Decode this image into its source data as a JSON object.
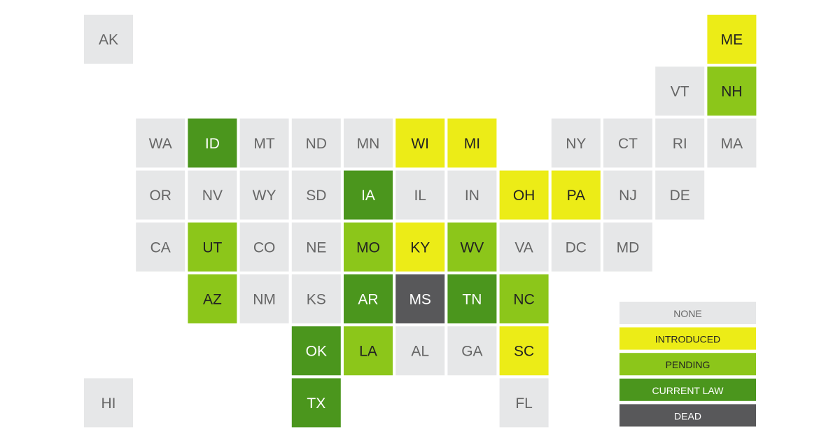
{
  "map": {
    "rows": [
      [
        {
          "label": "AK",
          "status": "NONE"
        },
        null,
        null,
        null,
        null,
        null,
        null,
        null,
        null,
        null,
        null,
        null,
        {
          "label": "ME",
          "status": "INTRODUCED"
        }
      ],
      [
        null,
        null,
        null,
        null,
        null,
        null,
        null,
        null,
        null,
        null,
        null,
        {
          "label": "VT",
          "status": "NONE"
        },
        {
          "label": "NH",
          "status": "PENDING"
        }
      ],
      [
        null,
        {
          "label": "WA",
          "status": "NONE"
        },
        {
          "label": "ID",
          "status": "CURRENT LAW"
        },
        {
          "label": "MT",
          "status": "NONE"
        },
        {
          "label": "ND",
          "status": "NONE"
        },
        {
          "label": "MN",
          "status": "NONE"
        },
        {
          "label": "WI",
          "status": "INTRODUCED"
        },
        {
          "label": "MI",
          "status": "INTRODUCED"
        },
        null,
        {
          "label": "NY",
          "status": "NONE"
        },
        {
          "label": "CT",
          "status": "NONE"
        },
        {
          "label": "RI",
          "status": "NONE"
        },
        {
          "label": "MA",
          "status": "NONE"
        }
      ],
      [
        null,
        {
          "label": "OR",
          "status": "NONE"
        },
        {
          "label": "NV",
          "status": "NONE"
        },
        {
          "label": "WY",
          "status": "NONE"
        },
        {
          "label": "SD",
          "status": "NONE"
        },
        {
          "label": "IA",
          "status": "CURRENT LAW"
        },
        {
          "label": "IL",
          "status": "NONE"
        },
        {
          "label": "IN",
          "status": "NONE"
        },
        {
          "label": "OH",
          "status": "INTRODUCED"
        },
        {
          "label": "PA",
          "status": "INTRODUCED"
        },
        {
          "label": "NJ",
          "status": "NONE"
        },
        {
          "label": "DE",
          "status": "NONE"
        },
        null
      ],
      [
        null,
        {
          "label": "CA",
          "status": "NONE"
        },
        {
          "label": "UT",
          "status": "PENDING"
        },
        {
          "label": "CO",
          "status": "NONE"
        },
        {
          "label": "NE",
          "status": "NONE"
        },
        {
          "label": "MO",
          "status": "PENDING"
        },
        {
          "label": "KY",
          "status": "INTRODUCED"
        },
        {
          "label": "WV",
          "status": "PENDING"
        },
        {
          "label": "VA",
          "status": "NONE"
        },
        {
          "label": "DC",
          "status": "NONE"
        },
        {
          "label": "MD",
          "status": "NONE"
        },
        null,
        null
      ],
      [
        null,
        null,
        {
          "label": "AZ",
          "status": "PENDING"
        },
        {
          "label": "NM",
          "status": "NONE"
        },
        {
          "label": "KS",
          "status": "NONE"
        },
        {
          "label": "AR",
          "status": "CURRENT LAW"
        },
        {
          "label": "MS",
          "status": "DEAD"
        },
        {
          "label": "TN",
          "status": "CURRENT LAW"
        },
        {
          "label": "NC",
          "status": "PENDING"
        },
        null,
        null,
        null,
        null
      ],
      [
        null,
        null,
        null,
        null,
        {
          "label": "OK",
          "status": "CURRENT LAW"
        },
        {
          "label": "LA",
          "status": "PENDING"
        },
        {
          "label": "AL",
          "status": "NONE"
        },
        {
          "label": "GA",
          "status": "NONE"
        },
        {
          "label": "SC",
          "status": "INTRODUCED"
        },
        null,
        null,
        null,
        null
      ],
      [
        {
          "label": "HI",
          "status": "NONE"
        },
        null,
        null,
        null,
        {
          "label": "TX",
          "status": "CURRENT LAW"
        },
        null,
        null,
        null,
        {
          "label": "FL",
          "status": "NONE"
        },
        null,
        null,
        null,
        null
      ]
    ],
    "legend": [
      {
        "label": "NONE",
        "color": "#e6e7e8",
        "text_color": "#666666"
      },
      {
        "label": "INTRODUCED",
        "color": "#ecec17",
        "text_color": "#222222"
      },
      {
        "label": "PENDING",
        "color": "#8cc61a",
        "text_color": "#222222"
      },
      {
        "label": "CURRENT LAW",
        "color": "#4b961d",
        "text_color": "#ffffff"
      },
      {
        "label": "DEAD",
        "color": "#58585a",
        "text_color": "#ffffff"
      }
    ]
  }
}
